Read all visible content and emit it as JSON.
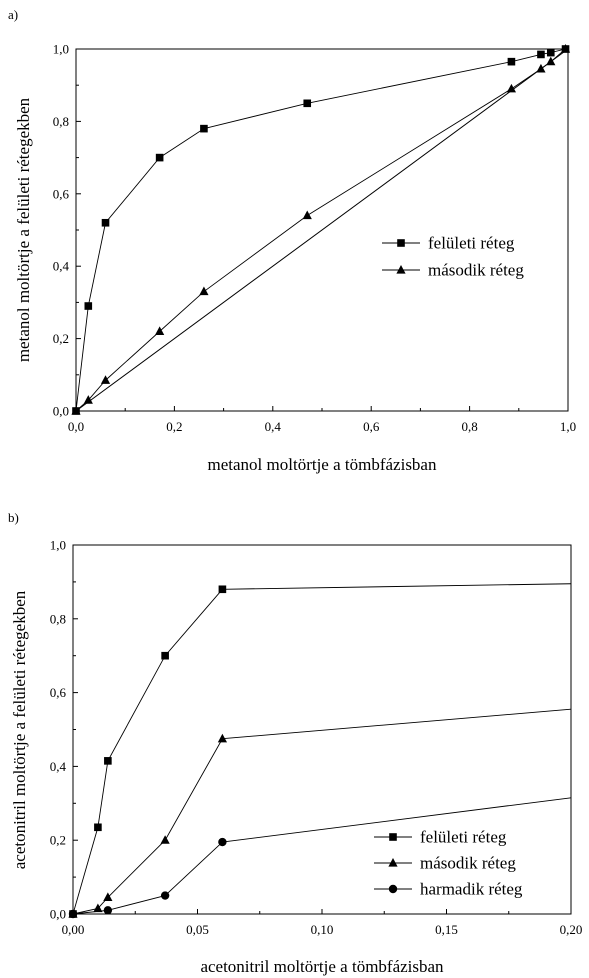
{
  "chart_data": [
    {
      "type": "line",
      "panel_label": "a)",
      "title": "",
      "xlabel": "metanol moltörtje a tömbfázisban",
      "ylabel": "metanol moltörtje a felületi rétegekben",
      "xlim": [
        0,
        1.0
      ],
      "ylim": [
        0,
        1.0
      ],
      "x_ticks": [
        0,
        0.2,
        0.4,
        0.6,
        0.8,
        1.0
      ],
      "x_tick_labels": [
        "0,0",
        "0,2",
        "0,4",
        "0,6",
        "0,8",
        "1,0"
      ],
      "y_ticks": [
        0,
        0.2,
        0.4,
        0.6,
        0.8,
        1.0
      ],
      "y_tick_labels": [
        "0,0",
        "0,2",
        "0,4",
        "0,6",
        "0,8",
        "1,0"
      ],
      "grid": false,
      "legend_position": "center-right",
      "reference_line": {
        "x": [
          0,
          1.0
        ],
        "y": [
          0,
          1.0
        ]
      },
      "series": [
        {
          "name": "felületi réteg",
          "marker": "square",
          "x": [
            0,
            0.025,
            0.06,
            0.17,
            0.26,
            0.47,
            0.885,
            0.945,
            0.965,
            0.995
          ],
          "y": [
            0,
            0.29,
            0.52,
            0.7,
            0.78,
            0.85,
            0.965,
            0.985,
            0.99,
            1.0
          ]
        },
        {
          "name": "második réteg",
          "marker": "triangle",
          "x": [
            0,
            0.025,
            0.06,
            0.17,
            0.26,
            0.47,
            0.885,
            0.945,
            0.965,
            0.995
          ],
          "y": [
            0,
            0.03,
            0.085,
            0.22,
            0.33,
            0.54,
            0.89,
            0.945,
            0.965,
            1.0
          ]
        }
      ]
    },
    {
      "type": "line",
      "panel_label": "b)",
      "title": "",
      "xlabel": "acetonitril moltörtje a tömbfázisban",
      "ylabel": "acetonitril moltörtje a felületi rétegekben",
      "xlim": [
        0,
        0.2
      ],
      "ylim": [
        0,
        1.0
      ],
      "x_ticks": [
        0,
        0.05,
        0.1,
        0.15,
        0.2
      ],
      "x_tick_labels": [
        "0,00",
        "0,05",
        "0,10",
        "0,15",
        "0,20"
      ],
      "y_ticks": [
        0,
        0.2,
        0.4,
        0.6,
        0.8,
        1.0
      ],
      "y_tick_labels": [
        "0,0",
        "0,2",
        "0,4",
        "0,6",
        "0,8",
        "1,0"
      ],
      "grid": false,
      "legend_position": "bottom-right",
      "series": [
        {
          "name": "felületi réteg",
          "marker": "square",
          "x": [
            0,
            0.01,
            0.014,
            0.037,
            0.06
          ],
          "y": [
            0,
            0.235,
            0.415,
            0.7,
            0.88
          ],
          "extension": {
            "x": [
              0.06,
              0.2
            ],
            "y": [
              0.88,
              0.895
            ]
          }
        },
        {
          "name": "második réteg",
          "marker": "triangle",
          "x": [
            0,
            0.01,
            0.014,
            0.037,
            0.06
          ],
          "y": [
            0,
            0.015,
            0.045,
            0.2,
            0.475
          ],
          "extension": {
            "x": [
              0.06,
              0.2
            ],
            "y": [
              0.475,
              0.555
            ]
          }
        },
        {
          "name": "harmadik réteg",
          "marker": "circle",
          "x": [
            0,
            0.014,
            0.037,
            0.06
          ],
          "y": [
            0,
            0.01,
            0.05,
            0.195
          ],
          "extension": {
            "x": [
              0.06,
              0.2
            ],
            "y": [
              0.195,
              0.315
            ]
          }
        }
      ]
    }
  ]
}
